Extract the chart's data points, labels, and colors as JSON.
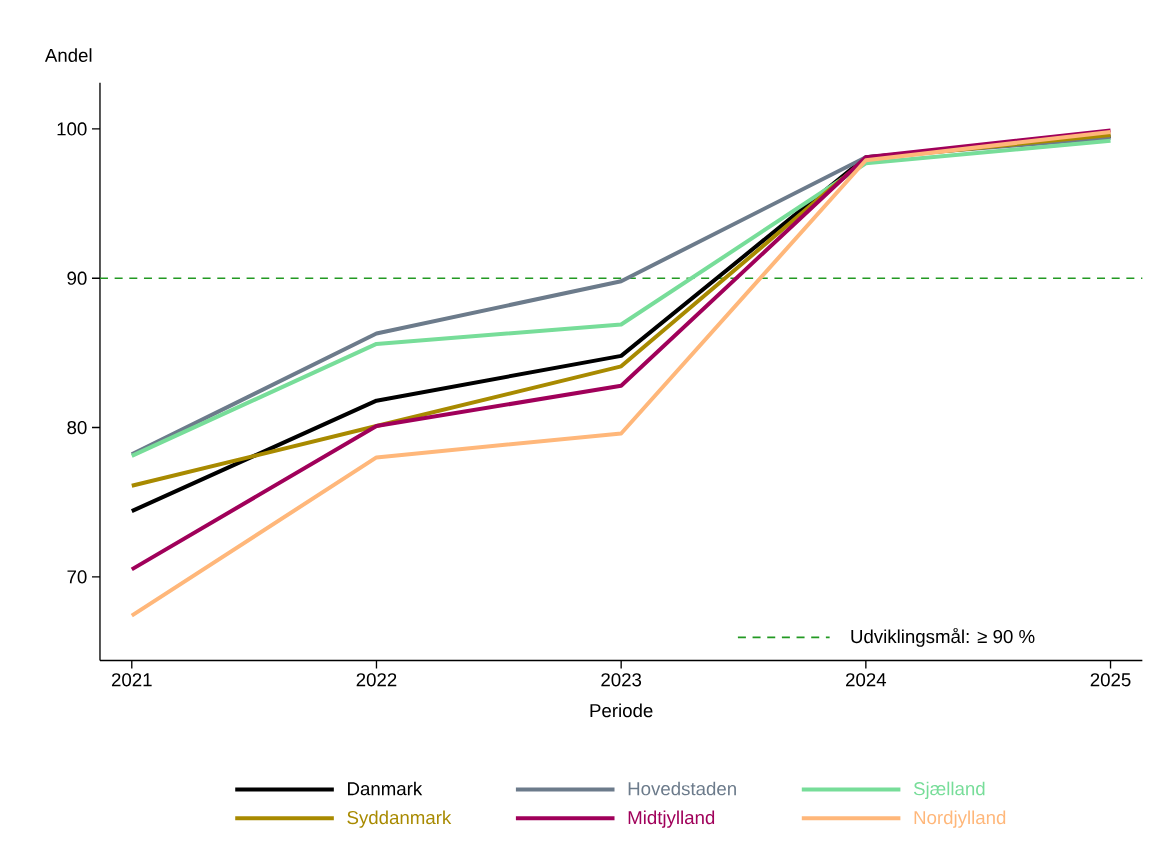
{
  "chart_data": {
    "type": "line",
    "xlabel": "Periode",
    "ylabel": "Andel",
    "x": [
      2021,
      2022,
      2023,
      2024,
      2025
    ],
    "series": [
      {
        "name": "Danmark",
        "color": "#000000",
        "values": [
          74.4,
          81.8,
          84.8,
          98.1,
          99.5
        ]
      },
      {
        "name": "Hovedstaden",
        "color": "#6c7b8b",
        "values": [
          78.2,
          86.3,
          89.8,
          98.1,
          99.4
        ]
      },
      {
        "name": "Sjælland",
        "color": "#77dd99",
        "values": [
          78.1,
          85.6,
          86.9,
          97.7,
          99.2
        ]
      },
      {
        "name": "Syddanmark",
        "color": "#a88a00",
        "values": [
          76.1,
          80.1,
          84.1,
          98.0,
          99.6
        ]
      },
      {
        "name": "Midtjylland",
        "color": "#a0005a",
        "values": [
          70.5,
          80.1,
          82.8,
          98.1,
          99.9
        ]
      },
      {
        "name": "Nordjylland",
        "color": "#ffb77a",
        "values": [
          67.4,
          78.0,
          79.6,
          97.9,
          99.8
        ]
      }
    ],
    "xlim": [
      2020.87,
      2025.13
    ],
    "ylim": [
      64.4,
      103.1
    ],
    "xticks": [
      2021,
      2022,
      2023,
      2024,
      2025
    ],
    "yticks": [
      70,
      80,
      90,
      100
    ],
    "ref_lines": [
      {
        "axis": "y",
        "value": 90,
        "label": "Udviklingsmål: ≥ 90 %",
        "color": "#229922",
        "line_style": "dashed"
      }
    ],
    "legend": "bottom",
    "grid": false,
    "marker": "none",
    "line_style": "solid"
  }
}
